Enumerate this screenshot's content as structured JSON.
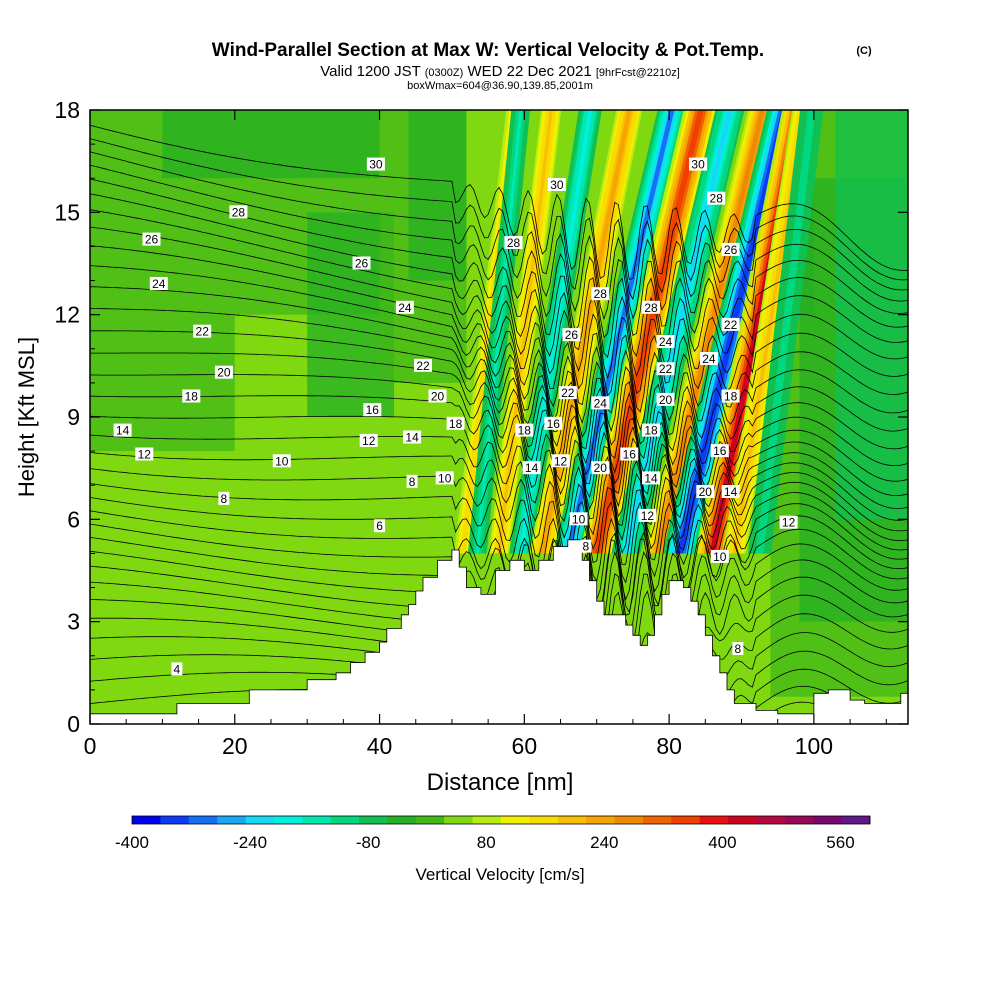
{
  "header": {
    "title": "Wind-Parallel Section at Max W: Vertical Velocity & Pot.Temp.",
    "copyright": "(C)",
    "valid_prefix": "Valid 1200 JST",
    "valid_zulu": "(0300Z)",
    "valid_date": "WED 22 Dec 2021",
    "forecast_info": "[9hrFcst@2210z]",
    "box_info": "boxWmax=604@36.90,139.85,2001m"
  },
  "chart_data": {
    "type": "heatmap",
    "xlabel": "Distance [nm]",
    "ylabel": "Height [Kft MSL]",
    "xlim": [
      0,
      113
    ],
    "ylim": [
      0,
      18
    ],
    "x_ticks": [
      "0",
      "20",
      "40",
      "60",
      "80",
      "100"
    ],
    "x_tick_values": [
      0,
      20,
      40,
      60,
      80,
      100
    ],
    "y_ticks": [
      "0",
      "3",
      "6",
      "9",
      "12",
      "15",
      "18"
    ],
    "y_tick_values": [
      0,
      3,
      6,
      9,
      12,
      15,
      18
    ],
    "terrain": [
      [
        0,
        0.3
      ],
      [
        12,
        0.3
      ],
      [
        12,
        0.6
      ],
      [
        22,
        0.6
      ],
      [
        22,
        1.0
      ],
      [
        30,
        1.0
      ],
      [
        30,
        1.3
      ],
      [
        34,
        1.3
      ],
      [
        34,
        1.5
      ],
      [
        36,
        1.5
      ],
      [
        36,
        1.8
      ],
      [
        38,
        1.8
      ],
      [
        38,
        2.1
      ],
      [
        40,
        2.1
      ],
      [
        40,
        2.4
      ],
      [
        41,
        2.4
      ],
      [
        41,
        2.8
      ],
      [
        43,
        2.8
      ],
      [
        43,
        3.2
      ],
      [
        44,
        3.2
      ],
      [
        44,
        3.5
      ],
      [
        45,
        3.5
      ],
      [
        45,
        3.9
      ],
      [
        46,
        3.9
      ],
      [
        46,
        4.3
      ],
      [
        48,
        4.3
      ],
      [
        48,
        4.8
      ],
      [
        50,
        4.8
      ],
      [
        50,
        5.1
      ],
      [
        51,
        5.1
      ],
      [
        51,
        4.6
      ],
      [
        52,
        4.6
      ],
      [
        52,
        4.0
      ],
      [
        54,
        4.0
      ],
      [
        54,
        3.8
      ],
      [
        56,
        3.8
      ],
      [
        56,
        4.5
      ],
      [
        58,
        4.5
      ],
      [
        58,
        4.8
      ],
      [
        60,
        4.8
      ],
      [
        60,
        4.5
      ],
      [
        62,
        4.5
      ],
      [
        62,
        4.8
      ],
      [
        64,
        4.8
      ],
      [
        64,
        5.2
      ],
      [
        66,
        5.2
      ],
      [
        66,
        5.4
      ],
      [
        68,
        5.4
      ],
      [
        68,
        4.8
      ],
      [
        69,
        4.8
      ],
      [
        69,
        4.2
      ],
      [
        70,
        4.2
      ],
      [
        70,
        3.6
      ],
      [
        71,
        3.6
      ],
      [
        71,
        3.2
      ],
      [
        74,
        3.2
      ],
      [
        74,
        2.9
      ],
      [
        75,
        2.9
      ],
      [
        75,
        2.6
      ],
      [
        76,
        2.6
      ],
      [
        76,
        2.3
      ],
      [
        77,
        2.3
      ],
      [
        77,
        2.6
      ],
      [
        78,
        2.6
      ],
      [
        78,
        3.2
      ],
      [
        79,
        3.2
      ],
      [
        79,
        3.8
      ],
      [
        80,
        3.8
      ],
      [
        80,
        4.2
      ],
      [
        82,
        4.2
      ],
      [
        82,
        4.0
      ],
      [
        83,
        4.0
      ],
      [
        83,
        3.6
      ],
      [
        84,
        3.6
      ],
      [
        84,
        3.2
      ],
      [
        85,
        3.2
      ],
      [
        85,
        2.6
      ],
      [
        86,
        2.6
      ],
      [
        86,
        2.0
      ],
      [
        87,
        2.0
      ],
      [
        87,
        1.5
      ],
      [
        88,
        1.5
      ],
      [
        88,
        1.0
      ],
      [
        89,
        1.0
      ],
      [
        89,
        0.6
      ],
      [
        92,
        0.6
      ],
      [
        92,
        0.4
      ],
      [
        95,
        0.4
      ],
      [
        95,
        0.3
      ],
      [
        100,
        0.3
      ],
      [
        100,
        0.9
      ],
      [
        102,
        0.9
      ],
      [
        102,
        1.0
      ],
      [
        105,
        1.0
      ],
      [
        105,
        0.7
      ],
      [
        107,
        0.7
      ],
      [
        107,
        0.6
      ],
      [
        112,
        0.6
      ],
      [
        112,
        0.9
      ],
      [
        113,
        0.9
      ],
      [
        113,
        0
      ]
    ],
    "w_bands": [
      {
        "x": 51.5,
        "dx": 0.6,
        "w": 180,
        "width": 1.2
      },
      {
        "x": 53.5,
        "dx": 0.5,
        "w": -150,
        "width": 1.3
      },
      {
        "x": 56.5,
        "dx": 0.6,
        "w": 220,
        "width": 1.4
      },
      {
        "x": 59.5,
        "dx": 0.8,
        "w": -220,
        "width": 1.6
      },
      {
        "x": 62.5,
        "dx": 1.0,
        "w": 260,
        "width": 1.8
      },
      {
        "x": 66.0,
        "dx": 1.2,
        "w": -330,
        "width": 2.0
      },
      {
        "x": 70.0,
        "dx": 1.2,
        "w": 420,
        "width": 2.4
      },
      {
        "x": 74.0,
        "dx": 1.2,
        "w": -260,
        "width": 2.0
      },
      {
        "x": 78.5,
        "dx": 1.2,
        "w": 330,
        "width": 2.0
      },
      {
        "x": 81.5,
        "dx": 1.2,
        "w": -400,
        "width": 2.4
      },
      {
        "x": 86.0,
        "dx": 1.0,
        "w": 480,
        "width": 2.4
      },
      {
        "x": 89.0,
        "dx": 0.8,
        "w": 200,
        "width": 1.6
      },
      {
        "x": 92.5,
        "dx": 0.6,
        "w": -120,
        "width": 1.6
      }
    ],
    "theta_labels": [
      {
        "x": 39.5,
        "y": 16.4,
        "text": "30"
      },
      {
        "x": 20.5,
        "y": 15.0,
        "text": "28"
      },
      {
        "x": 8.5,
        "y": 14.2,
        "text": "26"
      },
      {
        "x": 37.5,
        "y": 13.5,
        "text": "26"
      },
      {
        "x": 9.5,
        "y": 12.9,
        "text": "24"
      },
      {
        "x": 43.5,
        "y": 12.2,
        "text": "24"
      },
      {
        "x": 15.5,
        "y": 11.5,
        "text": "22"
      },
      {
        "x": 46.0,
        "y": 10.5,
        "text": "22"
      },
      {
        "x": 18.5,
        "y": 10.3,
        "text": "20"
      },
      {
        "x": 48.0,
        "y": 9.6,
        "text": "20"
      },
      {
        "x": 14.0,
        "y": 9.6,
        "text": "18"
      },
      {
        "x": 50.5,
        "y": 8.8,
        "text": "18"
      },
      {
        "x": 39.0,
        "y": 9.2,
        "text": "16"
      },
      {
        "x": 4.5,
        "y": 8.6,
        "text": "14"
      },
      {
        "x": 44.5,
        "y": 8.4,
        "text": "14"
      },
      {
        "x": 38.5,
        "y": 8.3,
        "text": "12"
      },
      {
        "x": 7.5,
        "y": 7.9,
        "text": "12"
      },
      {
        "x": 26.5,
        "y": 7.7,
        "text": "10"
      },
      {
        "x": 49.0,
        "y": 7.2,
        "text": "10"
      },
      {
        "x": 44.5,
        "y": 7.1,
        "text": "8"
      },
      {
        "x": 18.5,
        "y": 6.6,
        "text": "8"
      },
      {
        "x": 40.0,
        "y": 5.8,
        "text": "6"
      },
      {
        "x": 12.0,
        "y": 1.6,
        "text": "4"
      },
      {
        "x": 89.5,
        "y": 2.2,
        "text": "8"
      },
      {
        "x": 96.5,
        "y": 5.9,
        "text": "12"
      },
      {
        "x": 60.0,
        "y": 8.6,
        "text": "18"
      },
      {
        "x": 64.0,
        "y": 8.8,
        "text": "16"
      },
      {
        "x": 61.0,
        "y": 7.5,
        "text": "14"
      },
      {
        "x": 65.0,
        "y": 7.7,
        "text": "12"
      },
      {
        "x": 67.5,
        "y": 6.0,
        "text": "10"
      },
      {
        "x": 68.5,
        "y": 5.2,
        "text": "8"
      },
      {
        "x": 58.5,
        "y": 14.1,
        "text": "28"
      },
      {
        "x": 64.5,
        "y": 15.8,
        "text": "30"
      },
      {
        "x": 66.5,
        "y": 11.4,
        "text": "26"
      },
      {
        "x": 66.0,
        "y": 9.7,
        "text": "22"
      },
      {
        "x": 70.5,
        "y": 9.4,
        "text": "24"
      },
      {
        "x": 70.5,
        "y": 12.6,
        "text": "28"
      },
      {
        "x": 70.5,
        "y": 7.5,
        "text": "20"
      },
      {
        "x": 74.5,
        "y": 7.9,
        "text": "16"
      },
      {
        "x": 77.5,
        "y": 12.2,
        "text": "28"
      },
      {
        "x": 79.5,
        "y": 11.2,
        "text": "24"
      },
      {
        "x": 79.5,
        "y": 10.4,
        "text": "22"
      },
      {
        "x": 79.5,
        "y": 9.5,
        "text": "20"
      },
      {
        "x": 77.5,
        "y": 8.6,
        "text": "18"
      },
      {
        "x": 77.5,
        "y": 7.2,
        "text": "14"
      },
      {
        "x": 77.0,
        "y": 6.1,
        "text": "12"
      },
      {
        "x": 84.0,
        "y": 16.4,
        "text": "30"
      },
      {
        "x": 86.5,
        "y": 15.4,
        "text": "28"
      },
      {
        "x": 88.5,
        "y": 13.9,
        "text": "26"
      },
      {
        "x": 88.5,
        "y": 11.7,
        "text": "22"
      },
      {
        "x": 85.5,
        "y": 10.7,
        "text": "24"
      },
      {
        "x": 88.5,
        "y": 9.6,
        "text": "18"
      },
      {
        "x": 87.0,
        "y": 8.0,
        "text": "16"
      },
      {
        "x": 85.0,
        "y": 6.8,
        "text": "20"
      },
      {
        "x": 88.5,
        "y": 6.8,
        "text": "14"
      },
      {
        "x": 87.0,
        "y": 4.9,
        "text": "10"
      }
    ]
  },
  "colorbar": {
    "label": "Vertical Velocity [cm/s]",
    "min": -400,
    "max": 600,
    "colors": [
      "#0000ee",
      "#0a3cf5",
      "#1470f5",
      "#18a6f5",
      "#14d8f5",
      "#00f0e0",
      "#00e8b0",
      "#00d880",
      "#10c050",
      "#24b024",
      "#40b818",
      "#80d810",
      "#b8ec10",
      "#f0f000",
      "#f8dc00",
      "#f8c000",
      "#f8a400",
      "#f08800",
      "#f06400",
      "#f04000",
      "#e81010",
      "#d00020",
      "#b80840",
      "#980858",
      "#780870",
      "#601888"
    ],
    "tick_labels": [
      "-400",
      "-240",
      "-80",
      "80",
      "240",
      "400",
      "560"
    ],
    "tick_values": [
      -400,
      -240,
      -80,
      80,
      240,
      400,
      560
    ]
  }
}
